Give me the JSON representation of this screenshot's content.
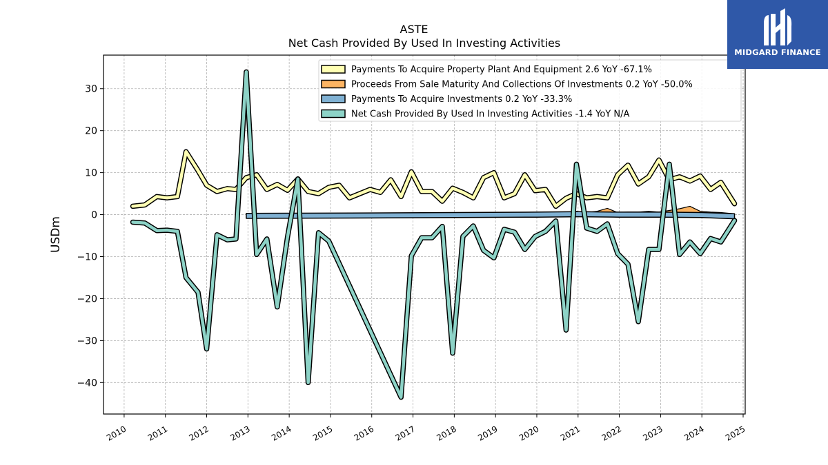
{
  "chart_data": {
    "type": "line",
    "title": "ASTE",
    "subtitle": "Net Cash Provided By Used In Investing Activities",
    "ylabel": "USDm",
    "xlabel": "",
    "xlim": [
      2009.5,
      2025.05
    ],
    "ylim": [
      -47.5,
      38
    ],
    "yticks": [
      30,
      20,
      10,
      0,
      -10,
      -20,
      -30,
      -40
    ],
    "xticks": [
      "2010",
      "2011",
      "2012",
      "2013",
      "2014",
      "2015",
      "2016",
      "2017",
      "2018",
      "2019",
      "2020",
      "2021",
      "2022",
      "2023",
      "2024",
      "2025"
    ],
    "grid": true,
    "legend_position": "top-right",
    "series": [
      {
        "name": "Payments To Acquire Property Plant And Equipment",
        "legend_label": "Payments To Acquire Property Plant And Equipment  2.6 YoY -67.1%",
        "color": "#ffffb3",
        "style": "line",
        "points": [
          [
            2010.21,
            2
          ],
          [
            2010.5,
            2.3
          ],
          [
            2010.79,
            4.3
          ],
          [
            2011.04,
            4
          ],
          [
            2011.29,
            4.3
          ],
          [
            2011.5,
            15
          ],
          [
            2011.79,
            10.5
          ],
          [
            2012.0,
            7
          ],
          [
            2012.25,
            5.5
          ],
          [
            2012.5,
            6.2
          ],
          [
            2012.71,
            6
          ],
          [
            2012.96,
            8.8
          ],
          [
            2013.21,
            9.5
          ],
          [
            2013.46,
            6
          ],
          [
            2013.71,
            7.2
          ],
          [
            2013.96,
            5.8
          ],
          [
            2014.21,
            8.5
          ],
          [
            2014.46,
            5.5
          ],
          [
            2014.71,
            5
          ],
          [
            2014.96,
            6.5
          ],
          [
            2015.21,
            7
          ],
          [
            2015.46,
            4
          ],
          [
            2015.71,
            5
          ],
          [
            2015.96,
            6
          ],
          [
            2016.21,
            5.3
          ],
          [
            2016.46,
            8.3
          ],
          [
            2016.71,
            4.3
          ],
          [
            2016.96,
            10.2
          ],
          [
            2017.21,
            5.5
          ],
          [
            2017.46,
            5.5
          ],
          [
            2017.71,
            3.2
          ],
          [
            2017.96,
            6.3
          ],
          [
            2018.21,
            5.3
          ],
          [
            2018.46,
            4
          ],
          [
            2018.71,
            8.8
          ],
          [
            2018.96,
            10
          ],
          [
            2019.21,
            4
          ],
          [
            2019.46,
            5
          ],
          [
            2019.71,
            9.5
          ],
          [
            2019.96,
            5.7
          ],
          [
            2020.21,
            6
          ],
          [
            2020.46,
            2
          ],
          [
            2020.71,
            3.9
          ],
          [
            2020.96,
            5
          ],
          [
            2021.21,
            4
          ],
          [
            2021.46,
            4.3
          ],
          [
            2021.71,
            4
          ],
          [
            2021.96,
            9.5
          ],
          [
            2022.21,
            11.8
          ],
          [
            2022.46,
            7.3
          ],
          [
            2022.71,
            9
          ],
          [
            2022.96,
            13
          ],
          [
            2023.21,
            8.3
          ],
          [
            2023.46,
            9
          ],
          [
            2023.71,
            8
          ],
          [
            2023.96,
            9.2
          ],
          [
            2024.21,
            6
          ],
          [
            2024.46,
            7.7
          ],
          [
            2024.79,
            2.6
          ]
        ]
      },
      {
        "name": "Proceeds From Sale Maturity And Collections Of Investments",
        "legend_label": "Proceeds From Sale Maturity And Collections Of Investments  0.2 YoY -50.0%",
        "color": "#fdb462",
        "style": "area",
        "points": [
          [
            2020.71,
            0.5
          ],
          [
            2020.96,
            0.8
          ],
          [
            2021.21,
            0.5
          ],
          [
            2021.46,
            0.8
          ],
          [
            2021.71,
            1.5
          ],
          [
            2021.96,
            0.5
          ],
          [
            2022.21,
            0.6
          ],
          [
            2022.46,
            0.6
          ],
          [
            2022.71,
            0.8
          ],
          [
            2022.96,
            0.6
          ],
          [
            2023.21,
            1.0
          ],
          [
            2023.46,
            1.4
          ],
          [
            2023.71,
            2.0
          ],
          [
            2023.96,
            0.8
          ],
          [
            2024.21,
            0.6
          ],
          [
            2024.46,
            0.5
          ],
          [
            2024.79,
            0.2
          ]
        ]
      },
      {
        "name": "Payments To Acquire Investments",
        "legend_label": "Payments To Acquire Investments  0.2 YoY -33.3%",
        "color": "#80b1d3",
        "style": "band",
        "points": [
          [
            2012.96,
            0.3
          ],
          [
            2016.0,
            0.4
          ],
          [
            2020.0,
            0.6
          ],
          [
            2021.0,
            0.7
          ],
          [
            2022.0,
            0.6
          ],
          [
            2023.0,
            0.6
          ],
          [
            2024.0,
            0.5
          ],
          [
            2024.79,
            0.2
          ]
        ]
      },
      {
        "name": "Net Cash Provided By Used In Investing Activities",
        "legend_label": "Net Cash Provided By Used In Investing Activities  -1.4 YoY N/A",
        "color": "#8dd3c7",
        "style": "line",
        "points": [
          [
            2010.21,
            -1.8
          ],
          [
            2010.5,
            -2
          ],
          [
            2010.79,
            -3.8
          ],
          [
            2011.04,
            -3.7
          ],
          [
            2011.29,
            -4
          ],
          [
            2011.5,
            -15
          ],
          [
            2011.79,
            -18.5
          ],
          [
            2012.0,
            -32
          ],
          [
            2012.25,
            -4.8
          ],
          [
            2012.5,
            -6
          ],
          [
            2012.71,
            -5.8
          ],
          [
            2012.96,
            34
          ],
          [
            2013.21,
            -9.5
          ],
          [
            2013.46,
            -5.8
          ],
          [
            2013.71,
            -22
          ],
          [
            2013.96,
            -5.3
          ],
          [
            2014.21,
            8.5
          ],
          [
            2014.46,
            -40
          ],
          [
            2014.71,
            -4.3
          ],
          [
            2014.96,
            -6.3
          ],
          [
            2016.71,
            -43.5
          ],
          [
            2016.96,
            -9.8
          ],
          [
            2017.21,
            -5.5
          ],
          [
            2017.46,
            -5.5
          ],
          [
            2017.71,
            -2.8
          ],
          [
            2017.96,
            -33
          ],
          [
            2018.21,
            -5.2
          ],
          [
            2018.46,
            -2.7
          ],
          [
            2018.71,
            -8.5
          ],
          [
            2018.96,
            -10.3
          ],
          [
            2019.21,
            -3.5
          ],
          [
            2019.46,
            -4.2
          ],
          [
            2019.71,
            -8.3
          ],
          [
            2019.96,
            -5.2
          ],
          [
            2020.21,
            -4
          ],
          [
            2020.46,
            -1.5
          ],
          [
            2020.71,
            -27.5
          ],
          [
            2020.96,
            12
          ],
          [
            2021.21,
            -3.2
          ],
          [
            2021.46,
            -4
          ],
          [
            2021.71,
            -2.2
          ],
          [
            2021.96,
            -9.3
          ],
          [
            2022.21,
            -11.8
          ],
          [
            2022.46,
            -25.5
          ],
          [
            2022.71,
            -8.3
          ],
          [
            2022.96,
            -8.3
          ],
          [
            2023.21,
            12
          ],
          [
            2023.46,
            -9.5
          ],
          [
            2023.71,
            -6.5
          ],
          [
            2023.96,
            -9.3
          ],
          [
            2024.21,
            -5.7
          ],
          [
            2024.46,
            -6.5
          ],
          [
            2024.79,
            -1.4
          ]
        ]
      }
    ]
  },
  "logo": {
    "text": "MIDGARD FINANCE",
    "bg_color": "#2f58a8"
  }
}
